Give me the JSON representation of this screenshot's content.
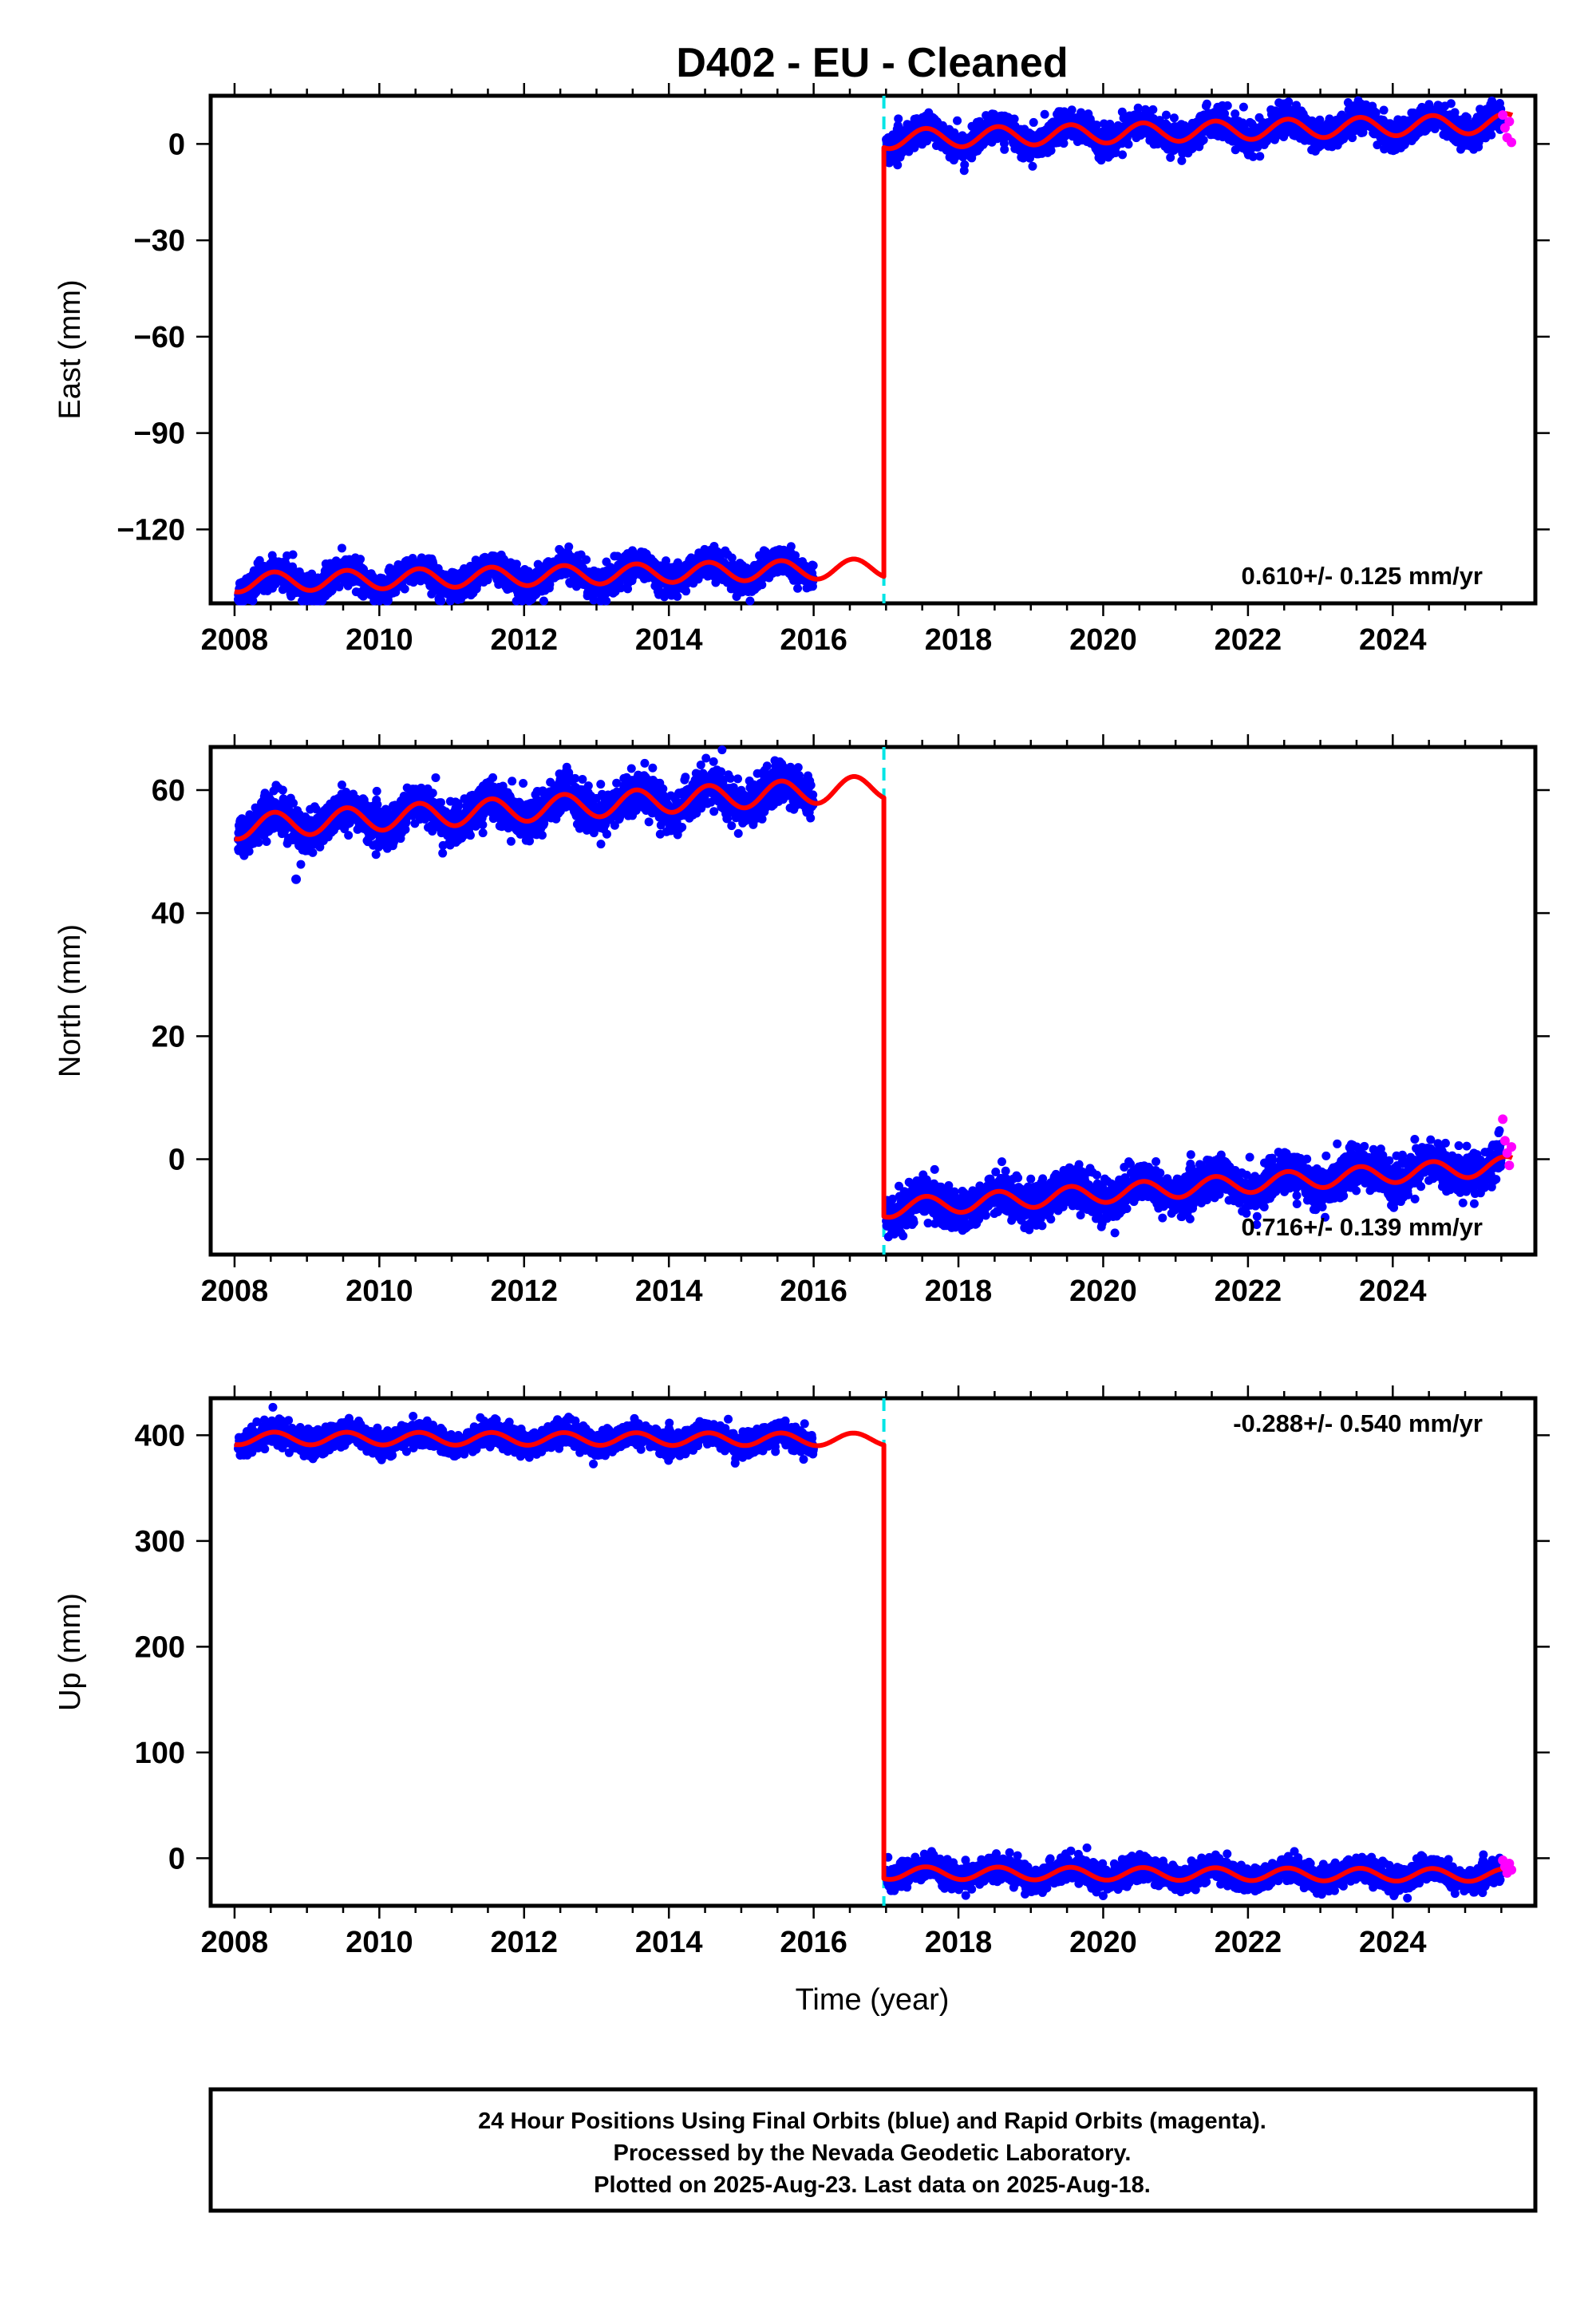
{
  "title": "D402  - EU - Cleaned",
  "xlabel": "Time (year)",
  "x_tick_labels": [
    "2008",
    "2010",
    "2012",
    "2014",
    "2016",
    "2018",
    "2020",
    "2022",
    "2024"
  ],
  "footer": {
    "line1": "24 Hour Positions Using Final Orbits (blue) and Rapid Orbits (magenta).",
    "line2": "Processed by the Nevada Geodetic Laboratory.",
    "line3": "Plotted on 2025-Aug-23. Last data on 2025-Aug-18."
  },
  "colors": {
    "final_orbits": "#0000ff",
    "rapid_orbits": "#ff00ff",
    "model_fit": "#ff0000",
    "equipment_change": "#00e5e5"
  },
  "chart_data": [
    {
      "type": "scatter",
      "ylabel": "East (mm)",
      "xlim": [
        2007.67,
        2025.97
      ],
      "ylim": [
        -143,
        15
      ],
      "y_ticks": [
        0,
        -30,
        -60,
        -90,
        -120
      ],
      "y_tick_labels": [
        "0",
        "−30",
        "−60",
        "−90",
        "−120"
      ],
      "rate_label": "0.610+/- 0.125 mm/yr",
      "offset_epoch": 2016.97,
      "data_end": 2016.0,
      "segment1": {
        "t0": 2008.0,
        "t1": 2016.97,
        "start": -136.5,
        "end": -132.0,
        "amp": 3.0
      },
      "segment2": {
        "t0": 2016.97,
        "t1": 2025.65,
        "start": 1.5,
        "end": 6.5,
        "amp": 3.0
      },
      "noise": 2.2,
      "series": [
        {
          "name": "Final Orbits",
          "x_range": [
            2008.05,
            2016.0
          ]
        },
        {
          "name": "Final Orbits",
          "x_range": [
            2017.0,
            2025.5
          ]
        },
        {
          "name": "Rapid Orbits",
          "x": [
            2025.52,
            2025.55,
            2025.58,
            2025.61,
            2025.64
          ],
          "y": [
            9.0,
            5.0,
            2.0,
            7.0,
            0.5
          ]
        }
      ]
    },
    {
      "type": "scatter",
      "ylabel": "North (mm)",
      "xlim": [
        2007.67,
        2025.97
      ],
      "ylim": [
        -15.5,
        67
      ],
      "y_ticks": [
        0,
        20,
        40,
        60
      ],
      "y_tick_labels": [
        "0",
        "20",
        "40",
        "60"
      ],
      "rate_label": "0.716+/- 0.139 mm/yr",
      "offset_epoch": 2016.97,
      "data_end": 2016.0,
      "segment1": {
        "t0": 2008.0,
        "t1": 2016.97,
        "start": 54.0,
        "end": 60.5,
        "amp": 2.0
      },
      "segment2": {
        "t0": 2016.97,
        "t1": 2025.65,
        "start": -8.0,
        "end": -1.0,
        "amp": 1.5
      },
      "noise": 1.6,
      "outliers": [
        {
          "x": 2008.85,
          "y": 45.5
        }
      ],
      "series": [
        {
          "name": "Final Orbits",
          "x_range": [
            2008.05,
            2016.0
          ]
        },
        {
          "name": "Final Orbits",
          "x_range": [
            2017.0,
            2025.5
          ]
        },
        {
          "name": "Rapid Orbits",
          "x": [
            2025.52,
            2025.55,
            2025.58,
            2025.61,
            2025.64
          ],
          "y": [
            6.5,
            3.0,
            1.0,
            -1.0,
            2.0
          ]
        }
      ]
    },
    {
      "type": "scatter",
      "ylabel": "Up (mm)",
      "xlim": [
        2007.67,
        2025.97
      ],
      "ylim": [
        -45,
        435
      ],
      "y_ticks": [
        0,
        100,
        200,
        300,
        400
      ],
      "y_tick_labels": [
        "0",
        "100",
        "200",
        "300",
        "400"
      ],
      "rate_label": "-0.288+/- 0.540 mm/yr",
      "offset_epoch": 2016.97,
      "data_end": 2016.0,
      "segment1": {
        "t0": 2008.0,
        "t1": 2016.97,
        "start": 397.0,
        "end": 396.0,
        "amp": 6.0
      },
      "segment2": {
        "t0": 2016.97,
        "t1": 2025.65,
        "start": -14.0,
        "end": -16.0,
        "amp": 6.0
      },
      "noise": 5.5,
      "series": [
        {
          "name": "Final Orbits",
          "x_range": [
            2008.05,
            2016.0
          ]
        },
        {
          "name": "Final Orbits",
          "x_range": [
            2017.0,
            2025.5
          ]
        },
        {
          "name": "Rapid Orbits",
          "x": [
            2025.52,
            2025.55,
            2025.58,
            2025.61,
            2025.64
          ],
          "y": [
            -2.0,
            -8.0,
            -14.0,
            -5.0,
            -11.0
          ]
        }
      ]
    }
  ]
}
